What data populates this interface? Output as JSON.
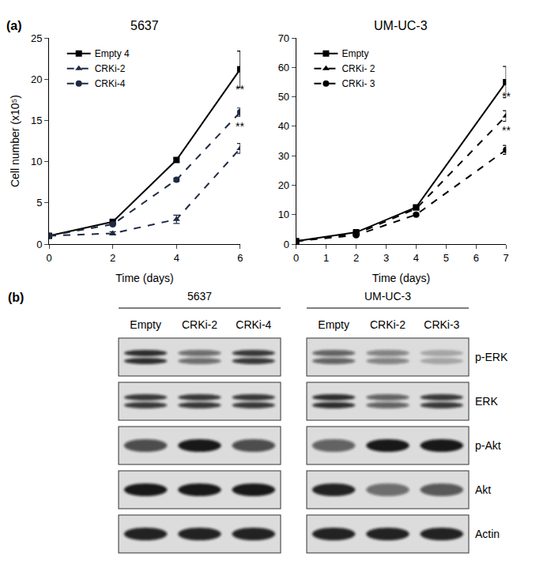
{
  "panel_labels": [
    "(a)",
    "(b)"
  ],
  "chart_data": [
    {
      "type": "line",
      "title": "5637",
      "x_label": "Time (days)",
      "y_label": "Cell number (x10⁵)",
      "x": [
        0,
        2,
        4,
        6
      ],
      "xlim": [
        0,
        6
      ],
      "xticks": [
        0,
        2,
        4,
        6
      ],
      "ylim": [
        0,
        25
      ],
      "yticks": [
        0,
        5,
        10,
        15,
        20,
        25
      ],
      "grid": false,
      "legend": "upper left",
      "series": [
        {
          "name": "Empty 4",
          "color": "#000000",
          "marker": "square",
          "line_style": "solid",
          "values": [
            1,
            2.7,
            10.2,
            21.2
          ],
          "errors": [
            0,
            0.2,
            0.2,
            2.2
          ]
        },
        {
          "name": "CRKi-2",
          "color": "#1f2a44",
          "marker": "triangle-up",
          "line_style": "dashed",
          "values": [
            1,
            1.3,
            3.0,
            11.6
          ],
          "errors": [
            0,
            0.2,
            0.5,
            0.6
          ]
        },
        {
          "name": "CRKi-4",
          "color": "#1f2a44",
          "marker": "circle",
          "line_style": "dashed",
          "values": [
            1,
            2.4,
            7.8,
            16.0
          ],
          "errors": [
            0,
            0.1,
            0.2,
            0.5
          ]
        }
      ],
      "annotations": [
        {
          "text": "**",
          "x": 6,
          "y": 17.8
        },
        {
          "text": "**",
          "x": 6,
          "y": 13.3
        }
      ]
    },
    {
      "type": "line",
      "title": "UM-UC-3",
      "x_label": "Time (days)",
      "x": [
        0,
        2,
        4,
        7
      ],
      "xlim": [
        0,
        7
      ],
      "xticks": [
        0,
        1,
        2,
        3,
        4,
        5,
        6,
        7
      ],
      "ylim": [
        0,
        70
      ],
      "yticks": [
        0,
        10,
        20,
        30,
        40,
        50,
        60,
        70
      ],
      "grid": false,
      "legend": "upper left",
      "series": [
        {
          "name": "Empty",
          "color": "#000000",
          "marker": "square",
          "line_style": "solid",
          "values": [
            1,
            4,
            12.5,
            55
          ],
          "errors": [
            0,
            0.4,
            0.5,
            5.3
          ]
        },
        {
          "name": "CRKi- 2",
          "color": "#000000",
          "marker": "triangle-up",
          "line_style": "dashed",
          "values": [
            1,
            3.5,
            12,
            43.5
          ],
          "errors": [
            0,
            0.3,
            0.4,
            1.8
          ]
        },
        {
          "name": "CRKi- 3",
          "color": "#000000",
          "marker": "circle",
          "line_style": "dashed",
          "values": [
            1,
            3,
            10,
            32
          ],
          "errors": [
            0,
            0.2,
            0.3,
            1.5
          ]
        }
      ],
      "annotations": [
        {
          "text": "**",
          "x": 7,
          "y": 47.5
        },
        {
          "text": "**",
          "x": 7,
          "y": 36
        }
      ]
    }
  ],
  "blot": {
    "rows": [
      {
        "label": "p-ERK",
        "doublet": true
      },
      {
        "label": "ERK",
        "doublet": true
      },
      {
        "label": "p-Akt",
        "doublet": false
      },
      {
        "label": "Akt",
        "doublet": false
      },
      {
        "label": "Actin",
        "doublet": false
      }
    ],
    "cell_lines": [
      {
        "name": "5637",
        "lanes": [
          "Empty",
          "CRKi-2",
          "CRKi-4"
        ],
        "intensity": [
          [
            0.85,
            0.55,
            0.8
          ],
          [
            0.8,
            0.8,
            0.8
          ],
          [
            0.7,
            0.95,
            0.7
          ],
          [
            0.95,
            0.95,
            0.95
          ],
          [
            0.9,
            0.9,
            0.9
          ]
        ]
      },
      {
        "name": "UM-UC-3",
        "lanes": [
          "Empty",
          "CRKi-2",
          "CRKi-3"
        ],
        "intensity": [
          [
            0.6,
            0.45,
            0.25
          ],
          [
            0.85,
            0.6,
            0.8
          ],
          [
            0.6,
            0.95,
            0.95
          ],
          [
            0.9,
            0.55,
            0.65
          ],
          [
            0.9,
            0.9,
            0.9
          ]
        ]
      }
    ]
  }
}
